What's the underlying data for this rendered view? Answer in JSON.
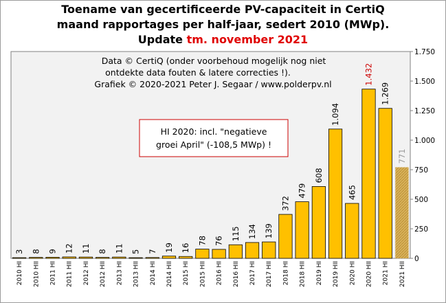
{
  "chart_data": {
    "type": "bar",
    "title_lines": [
      "Toename van gecertificeerde PV-capaciteit in CertiQ",
      "maand rapportages per half-jaar, sedert 2010 (MWp)."
    ],
    "title_update_prefix": "Update",
    "title_update_highlight": "tm. november 2021",
    "credits": [
      "Data © CertiQ (onder voorbehoud mogelijk nog niet",
      "ontdekte data fouten & latere correcties !).",
      "Grafiek © 2020-2021 Peter J. Segaar / www.polderpv.nl"
    ],
    "annotation_lines": [
      "HI 2020: incl. \"negatieve",
      "groei April\"  (-108,5 MWp) !"
    ],
    "categories": [
      "2010 HI",
      "2010 HII",
      "2011 HI",
      "2011 HII",
      "2012 HI",
      "2012 HII",
      "2013 HI",
      "2013 HII",
      "2014 HI",
      "2014 HII",
      "2015 HI",
      "2015 HII",
      "2016 HI",
      "2016 HII",
      "2017 HI",
      "2017 HII",
      "2018 HI",
      "2018 HII",
      "2019 HI",
      "2019 HII",
      "2020 HI",
      "2020 HII",
      "2021 HI",
      "2021 HII"
    ],
    "values": [
      3,
      8,
      9,
      12,
      11,
      8,
      11,
      5,
      7,
      19,
      16,
      78,
      76,
      115,
      134,
      139,
      372,
      479,
      608,
      1094,
      465,
      1432,
      1269,
      771
    ],
    "value_labels": [
      "3",
      "8",
      "9",
      "12",
      "11",
      "8",
      "11",
      "5",
      "7",
      "19",
      "16",
      "78",
      "76",
      "115",
      "134",
      "139",
      "372",
      "479",
      "608",
      "1.094",
      "465",
      "1.432",
      "1.269",
      "771"
    ],
    "highlight_index": 21,
    "partial_index": 23,
    "ylim": [
      0,
      1750
    ],
    "yticks": [
      0,
      250,
      500,
      750,
      1000,
      1250,
      1500,
      1750
    ],
    "ytick_labels": [
      "0",
      "250",
      "500",
      "750",
      "1.000",
      "1.250",
      "1.500",
      "1.750"
    ],
    "y_axis_position": "right",
    "grid": false,
    "colors": {
      "bar": "#ffc000",
      "bar_border": "#000000",
      "partial_bar": "#d4b060",
      "partial_label": "#999999",
      "highlight_label": "#cc0000",
      "plot_bg": "#f2f2f2",
      "annotation_border": "#cc0000",
      "title_highlight": "#e00000"
    }
  }
}
